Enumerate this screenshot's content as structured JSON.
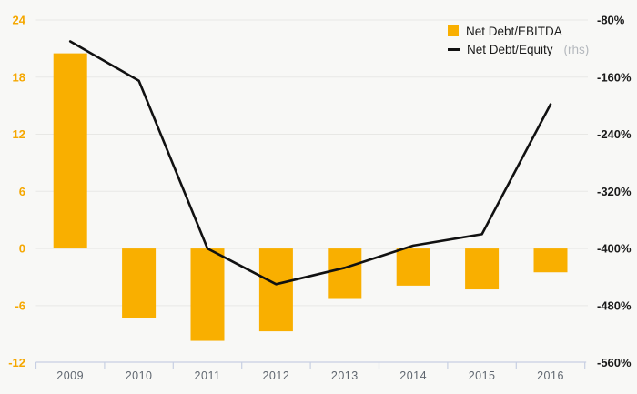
{
  "chart_data": {
    "type": "bar",
    "subtype": "bar+line combo, dual axis",
    "title": "",
    "categories": [
      "2009",
      "2010",
      "2011",
      "2012",
      "2013",
      "2014",
      "2015",
      "2016"
    ],
    "series": [
      {
        "name": "Net Debt/EBITDA",
        "type": "bar",
        "axis": "left",
        "color": "#F9AF00",
        "values": [
          20.5,
          -7.3,
          -9.7,
          -8.7,
          -5.3,
          -3.9,
          -4.3,
          -2.5
        ]
      },
      {
        "name": "Net Debt/Equity",
        "type": "line",
        "axis": "right",
        "color": "#111111",
        "values": [
          -110,
          -165,
          -400,
          -450,
          -427,
          -396,
          -380,
          -198
        ]
      }
    ],
    "left_axis": {
      "tick_labels": [
        "24",
        "18",
        "12",
        "6",
        "0",
        "-6",
        "-12"
      ],
      "min": -12,
      "max": 24,
      "step": 6,
      "label_color": "#F5A700"
    },
    "right_axis": {
      "tick_labels": [
        "-80%",
        "-160%",
        "-240%",
        "-320%",
        "-400%",
        "-480%",
        "-560%"
      ],
      "min": -560,
      "max": -80,
      "step": 80,
      "unit": "%",
      "label_color": "#1a1a1a"
    },
    "grid": "horizontal",
    "legend_position": "top-right",
    "legend": {
      "items": [
        {
          "label": "Net Debt/EBITDA",
          "suffix": "",
          "swatch": "bar-swatch"
        },
        {
          "label": "Net Debt/Equity",
          "suffix": "(rhs)",
          "swatch": "line-swatch"
        }
      ]
    }
  },
  "colors": {
    "background": "#f8f8f6",
    "gridline": "#e8e8e5",
    "axis_line": "#c7cfe3",
    "bar": "#F9AF00",
    "line": "#111111",
    "left_labels": "#F5A700",
    "right_labels": "#1a1a1a",
    "year_labels": "#606770",
    "legend_text": "#1a1a1a",
    "legend_suffix": "#b4b8bd"
  }
}
